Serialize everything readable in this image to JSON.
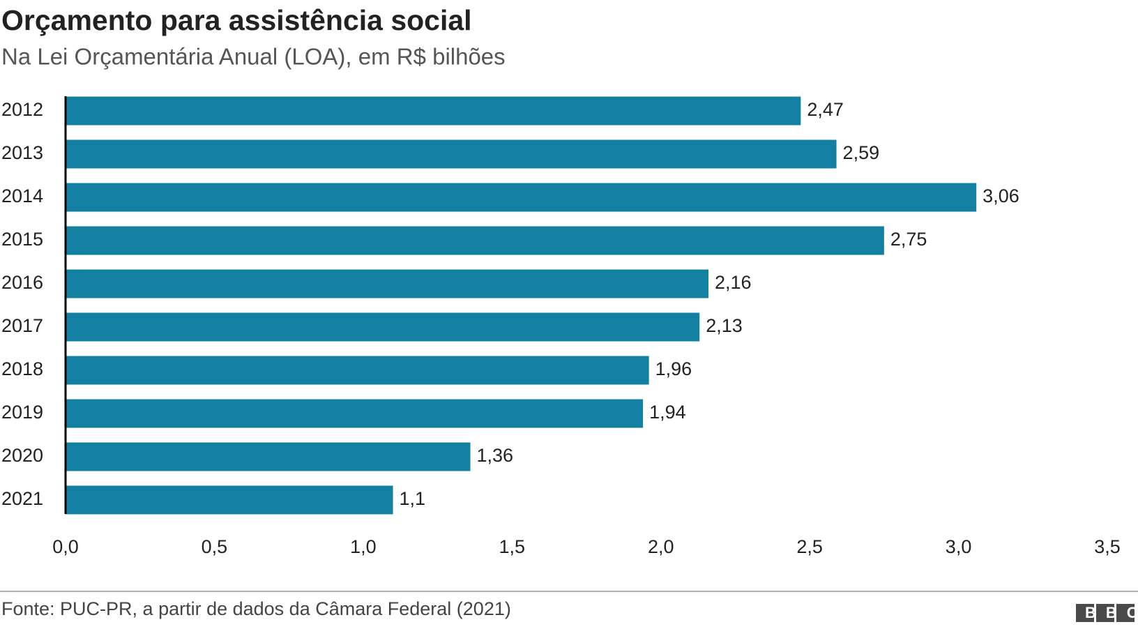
{
  "chart_data": {
    "type": "bar",
    "orientation": "horizontal",
    "title": "Orçamento para assistência social",
    "subtitle": "Na Lei Orçamentária Anual (LOA), em R$ bilhões",
    "categories": [
      "2012",
      "2013",
      "2014",
      "2015",
      "2016",
      "2017",
      "2018",
      "2019",
      "2020",
      "2021"
    ],
    "values": [
      2.47,
      2.59,
      3.06,
      2.75,
      2.16,
      2.13,
      1.96,
      1.94,
      1.36,
      1.1
    ],
    "value_labels": [
      "2,47",
      "2,59",
      "3,06",
      "2,75",
      "2,16",
      "2,13",
      "1,96",
      "1,94",
      "1,36",
      "1,1"
    ],
    "color": "#1380a1",
    "xlim": [
      0,
      3.5
    ],
    "xticks": [
      {
        "value": 0,
        "label": "0,0"
      },
      {
        "value": 0.5,
        "label": "0,5"
      },
      {
        "value": 1,
        "label": "1,0"
      },
      {
        "value": 1.5,
        "label": "1,5"
      },
      {
        "value": 2,
        "label": "2,0"
      },
      {
        "value": 2.5,
        "label": "2,5"
      },
      {
        "value": 3,
        "label": "3,0"
      },
      {
        "value": 3.5,
        "label": "3,5"
      }
    ],
    "grid": false,
    "source": "Fonte: PUC-PR, a partir de dados da Câmara Federal (2021)",
    "logo": "BBC"
  }
}
